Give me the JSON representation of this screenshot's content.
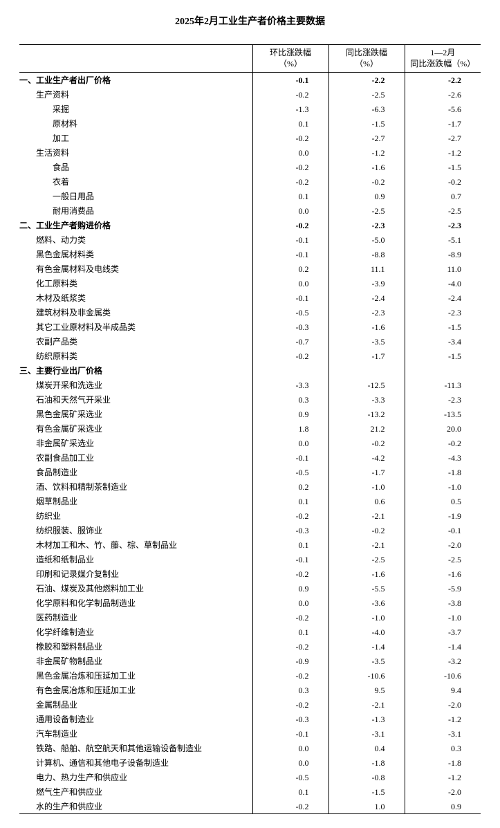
{
  "title": "2025年2月工业生产者价格主要数据",
  "columns": {
    "c0": "",
    "c1_line1": "环比涨跌幅",
    "c1_line2": "（%）",
    "c2_line1": "同比涨跌幅",
    "c2_line2": "（%）",
    "c3_line1": "1—2月",
    "c3_line2": "同比涨跌幅（%）"
  },
  "rows": [
    {
      "label": "一、工业生产者出厂价格",
      "indent": 0,
      "bold": true,
      "v1": "-0.1",
      "v2": "-2.2",
      "v3": "-2.2"
    },
    {
      "label": "生产资料",
      "indent": 1,
      "bold": false,
      "v1": "-0.2",
      "v2": "-2.5",
      "v3": "-2.6"
    },
    {
      "label": "采掘",
      "indent": 2,
      "bold": false,
      "v1": "-1.3",
      "v2": "-6.3",
      "v3": "-5.6"
    },
    {
      "label": "原材料",
      "indent": 2,
      "bold": false,
      "v1": "0.1",
      "v2": "-1.5",
      "v3": "-1.7"
    },
    {
      "label": "加工",
      "indent": 2,
      "bold": false,
      "v1": "-0.2",
      "v2": "-2.7",
      "v3": "-2.7"
    },
    {
      "label": "生活资料",
      "indent": 1,
      "bold": false,
      "v1": "0.0",
      "v2": "-1.2",
      "v3": "-1.2"
    },
    {
      "label": "食品",
      "indent": 2,
      "bold": false,
      "v1": "-0.2",
      "v2": "-1.6",
      "v3": "-1.5"
    },
    {
      "label": "衣着",
      "indent": 2,
      "bold": false,
      "v1": "-0.2",
      "v2": "-0.2",
      "v3": "-0.2"
    },
    {
      "label": "一般日用品",
      "indent": 2,
      "bold": false,
      "v1": "0.1",
      "v2": "0.9",
      "v3": "0.7"
    },
    {
      "label": "耐用消费品",
      "indent": 2,
      "bold": false,
      "v1": "0.0",
      "v2": "-2.5",
      "v3": "-2.5"
    },
    {
      "label": "二、工业生产者购进价格",
      "indent": 0,
      "bold": true,
      "v1": "-0.2",
      "v2": "-2.3",
      "v3": "-2.3"
    },
    {
      "label": "燃料、动力类",
      "indent": 1,
      "bold": false,
      "v1": "-0.1",
      "v2": "-5.0",
      "v3": "-5.1"
    },
    {
      "label": "黑色金属材料类",
      "indent": 1,
      "bold": false,
      "v1": "-0.1",
      "v2": "-8.8",
      "v3": "-8.9"
    },
    {
      "label": "有色金属材料及电线类",
      "indent": 1,
      "bold": false,
      "v1": "0.2",
      "v2": "11.1",
      "v3": "11.0"
    },
    {
      "label": "化工原料类",
      "indent": 1,
      "bold": false,
      "v1": "0.0",
      "v2": "-3.9",
      "v3": "-4.0"
    },
    {
      "label": "木材及纸浆类",
      "indent": 1,
      "bold": false,
      "v1": "-0.1",
      "v2": "-2.4",
      "v3": "-2.4"
    },
    {
      "label": "建筑材料及非金属类",
      "indent": 1,
      "bold": false,
      "v1": "-0.5",
      "v2": "-2.3",
      "v3": "-2.3"
    },
    {
      "label": "其它工业原材料及半成品类",
      "indent": 1,
      "bold": false,
      "v1": "-0.3",
      "v2": "-1.6",
      "v3": "-1.5"
    },
    {
      "label": "农副产品类",
      "indent": 1,
      "bold": false,
      "v1": "-0.7",
      "v2": "-3.5",
      "v3": "-3.4"
    },
    {
      "label": "纺织原料类",
      "indent": 1,
      "bold": false,
      "v1": "-0.2",
      "v2": "-1.7",
      "v3": "-1.5"
    },
    {
      "label": "三、主要行业出厂价格",
      "indent": 0,
      "bold": true,
      "v1": "",
      "v2": "",
      "v3": ""
    },
    {
      "label": "煤炭开采和洗选业",
      "indent": 1,
      "bold": false,
      "v1": "-3.3",
      "v2": "-12.5",
      "v3": "-11.3"
    },
    {
      "label": "石油和天然气开采业",
      "indent": 1,
      "bold": false,
      "v1": "0.3",
      "v2": "-3.3",
      "v3": "-2.3"
    },
    {
      "label": "黑色金属矿采选业",
      "indent": 1,
      "bold": false,
      "v1": "0.9",
      "v2": "-13.2",
      "v3": "-13.5"
    },
    {
      "label": "有色金属矿采选业",
      "indent": 1,
      "bold": false,
      "v1": "1.8",
      "v2": "21.2",
      "v3": "20.0"
    },
    {
      "label": "非金属矿采选业",
      "indent": 1,
      "bold": false,
      "v1": "0.0",
      "v2": "-0.2",
      "v3": "-0.2"
    },
    {
      "label": "农副食品加工业",
      "indent": 1,
      "bold": false,
      "v1": "-0.1",
      "v2": "-4.2",
      "v3": "-4.3"
    },
    {
      "label": "食品制造业",
      "indent": 1,
      "bold": false,
      "v1": "-0.5",
      "v2": "-1.7",
      "v3": "-1.8"
    },
    {
      "label": "酒、饮料和精制茶制造业",
      "indent": 1,
      "bold": false,
      "v1": "0.2",
      "v2": "-1.0",
      "v3": "-1.0"
    },
    {
      "label": "烟草制品业",
      "indent": 1,
      "bold": false,
      "v1": "0.1",
      "v2": "0.6",
      "v3": "0.5"
    },
    {
      "label": "纺织业",
      "indent": 1,
      "bold": false,
      "v1": "-0.2",
      "v2": "-2.1",
      "v3": "-1.9"
    },
    {
      "label": "纺织服装、服饰业",
      "indent": 1,
      "bold": false,
      "v1": "-0.3",
      "v2": "-0.2",
      "v3": "-0.1"
    },
    {
      "label": "木材加工和木、竹、藤、棕、草制品业",
      "indent": 1,
      "bold": false,
      "v1": "0.1",
      "v2": "-2.1",
      "v3": "-2.0"
    },
    {
      "label": "造纸和纸制品业",
      "indent": 1,
      "bold": false,
      "v1": "-0.1",
      "v2": "-2.5",
      "v3": "-2.5"
    },
    {
      "label": "印刷和记录媒介复制业",
      "indent": 1,
      "bold": false,
      "v1": "-0.2",
      "v2": "-1.6",
      "v3": "-1.6"
    },
    {
      "label": "石油、煤炭及其他燃料加工业",
      "indent": 1,
      "bold": false,
      "v1": "0.9",
      "v2": "-5.5",
      "v3": "-5.9"
    },
    {
      "label": "化学原料和化学制品制造业",
      "indent": 1,
      "bold": false,
      "v1": "0.0",
      "v2": "-3.6",
      "v3": "-3.8"
    },
    {
      "label": "医药制造业",
      "indent": 1,
      "bold": false,
      "v1": "-0.2",
      "v2": "-1.0",
      "v3": "-1.0"
    },
    {
      "label": "化学纤维制造业",
      "indent": 1,
      "bold": false,
      "v1": "0.1",
      "v2": "-4.0",
      "v3": "-3.7"
    },
    {
      "label": "橡胶和塑料制品业",
      "indent": 1,
      "bold": false,
      "v1": "-0.2",
      "v2": "-1.4",
      "v3": "-1.4"
    },
    {
      "label": "非金属矿物制品业",
      "indent": 1,
      "bold": false,
      "v1": "-0.9",
      "v2": "-3.5",
      "v3": "-3.2"
    },
    {
      "label": "黑色金属冶炼和压延加工业",
      "indent": 1,
      "bold": false,
      "v1": "-0.2",
      "v2": "-10.6",
      "v3": "-10.6"
    },
    {
      "label": "有色金属冶炼和压延加工业",
      "indent": 1,
      "bold": false,
      "v1": "0.3",
      "v2": "9.5",
      "v3": "9.4"
    },
    {
      "label": "金属制品业",
      "indent": 1,
      "bold": false,
      "v1": "-0.2",
      "v2": "-2.1",
      "v3": "-2.0"
    },
    {
      "label": "通用设备制造业",
      "indent": 1,
      "bold": false,
      "v1": "-0.3",
      "v2": "-1.3",
      "v3": "-1.2"
    },
    {
      "label": "汽车制造业",
      "indent": 1,
      "bold": false,
      "v1": "-0.1",
      "v2": "-3.1",
      "v3": "-3.1"
    },
    {
      "label": "铁路、船舶、航空航天和其他运输设备制造业",
      "indent": 1,
      "bold": false,
      "v1": "0.0",
      "v2": "0.4",
      "v3": "0.3"
    },
    {
      "label": "计算机、通信和其他电子设备制造业",
      "indent": 1,
      "bold": false,
      "v1": "0.0",
      "v2": "-1.8",
      "v3": "-1.8"
    },
    {
      "label": "电力、热力生产和供应业",
      "indent": 1,
      "bold": false,
      "v1": "-0.5",
      "v2": "-0.8",
      "v3": "-1.2"
    },
    {
      "label": "燃气生产和供应业",
      "indent": 1,
      "bold": false,
      "v1": "0.1",
      "v2": "-1.5",
      "v3": "-2.0"
    },
    {
      "label": "水的生产和供应业",
      "indent": 1,
      "bold": false,
      "v1": "-0.2",
      "v2": "1.0",
      "v3": "0.9"
    }
  ]
}
